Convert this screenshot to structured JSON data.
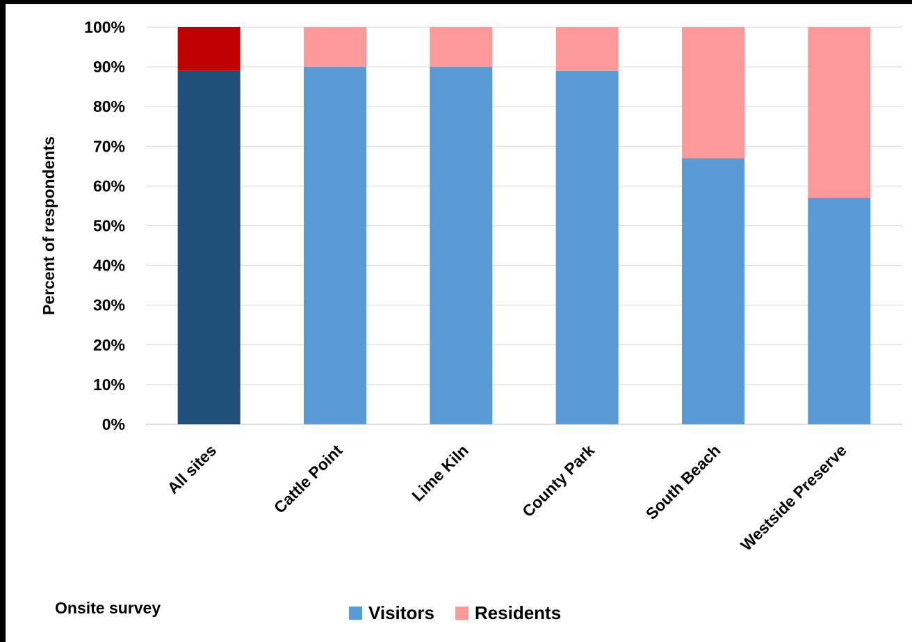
{
  "chart_data": {
    "type": "bar",
    "stacked": true,
    "categories": [
      "All sites",
      "Cattle Point",
      "Lime Kiln",
      "County Park",
      "South Beach",
      "Westside Preserve"
    ],
    "series": [
      {
        "name": "Visitors",
        "values": [
          89,
          90,
          90,
          89,
          67,
          57
        ],
        "color": "#5b9bd5"
      },
      {
        "name": "Residents",
        "values": [
          11,
          10,
          10,
          11,
          33,
          43
        ],
        "color": "#ff9999"
      }
    ],
    "highlight": {
      "category": "All sites",
      "colors": [
        "#1f4e79",
        "#c00000"
      ]
    },
    "ylabel": "Percent of respondents",
    "yticks": [
      "0%",
      "10%",
      "20%",
      "30%",
      "40%",
      "50%",
      "60%",
      "70%",
      "80%",
      "90%",
      "100%"
    ],
    "ylim": [
      0,
      100
    ],
    "grid": true,
    "legend": "bottom-center",
    "note": "Onsite survey"
  }
}
